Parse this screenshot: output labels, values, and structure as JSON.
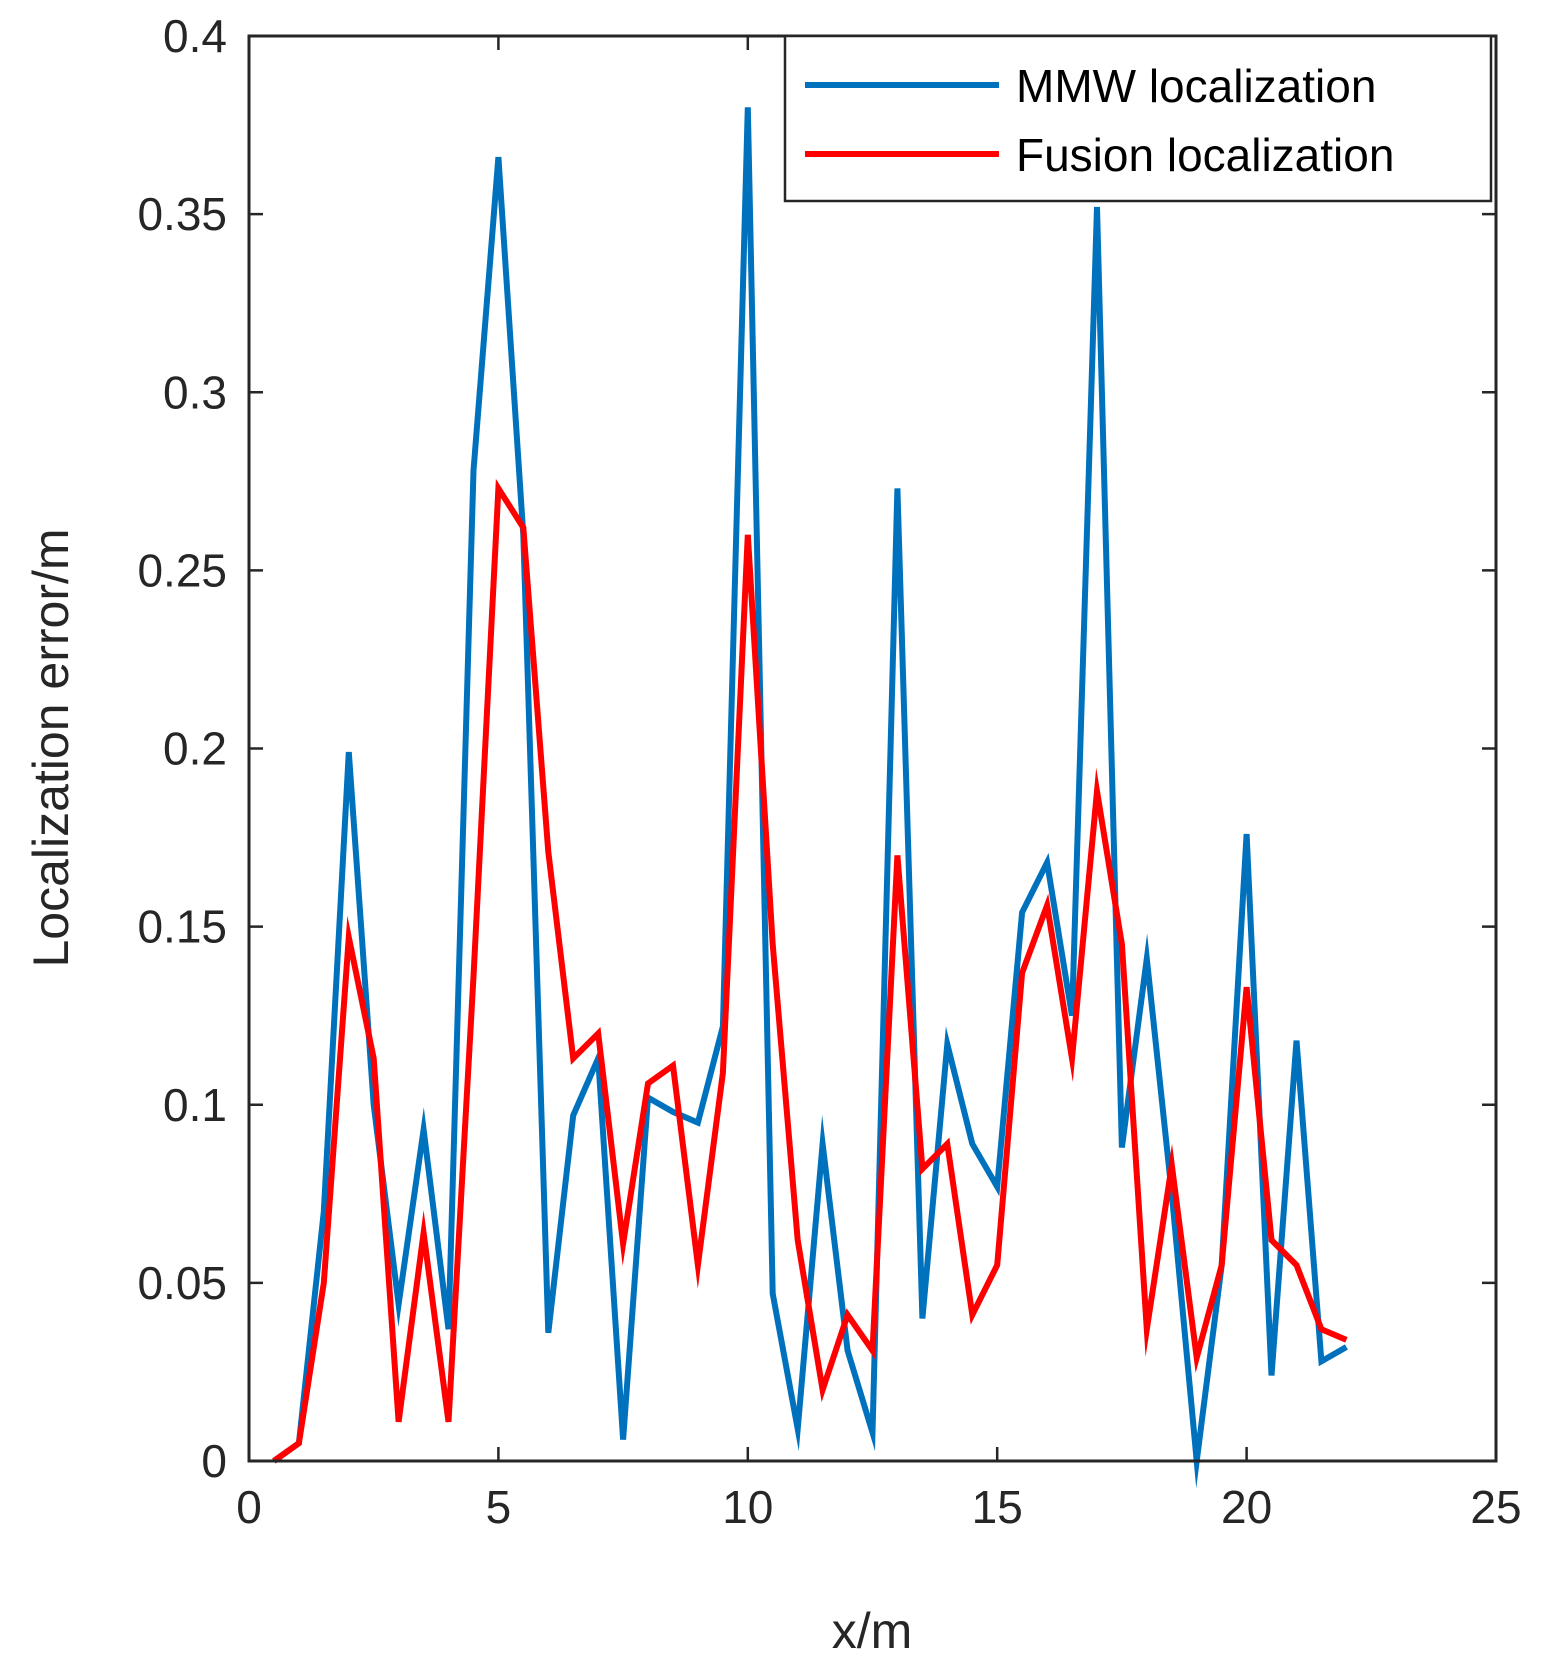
{
  "chart_data": {
    "type": "line",
    "title": "",
    "xlabel": "x/m",
    "ylabel": "Localization error/m",
    "xlim": [
      0,
      25
    ],
    "ylim": [
      0,
      0.4
    ],
    "xticks": [
      0,
      5,
      10,
      15,
      20,
      25
    ],
    "yticks": [
      0,
      0.05,
      0.1,
      0.15,
      0.2,
      0.25,
      0.3,
      0.35,
      0.4
    ],
    "xtick_labels": [
      "0",
      "5",
      "10",
      "15",
      "20",
      "25"
    ],
    "ytick_labels": [
      "0",
      "0.05",
      "0.1",
      "0.15",
      "0.2",
      "0.25",
      "0.3",
      "0.35",
      "0.4"
    ],
    "grid": false,
    "legend_position": "top-right",
    "x": [
      0.5,
      1,
      1.5,
      2,
      2.5,
      3,
      3.5,
      4,
      4.5,
      5,
      5.5,
      6,
      6.5,
      7,
      7.5,
      8,
      8.5,
      9,
      9.5,
      10,
      10.5,
      11,
      11.5,
      12,
      12.5,
      13,
      13.5,
      14,
      14.5,
      15,
      15.5,
      16,
      16.5,
      17,
      17.5,
      18,
      18.5,
      19,
      19.5,
      20,
      20.5,
      21,
      21.5,
      22
    ],
    "series": [
      {
        "name": "MMW localization",
        "color": "#0072BD",
        "values": [
          0.0,
          0.005,
          0.07,
          0.199,
          0.1,
          0.044,
          0.093,
          0.037,
          0.278,
          0.366,
          0.26,
          0.036,
          0.097,
          0.113,
          0.006,
          0.102,
          0.098,
          0.095,
          0.122,
          0.38,
          0.047,
          0.009,
          0.089,
          0.031,
          0.008,
          0.273,
          0.04,
          0.117,
          0.089,
          0.077,
          0.154,
          0.168,
          0.125,
          0.352,
          0.088,
          0.141,
          0.075,
          0.0,
          0.055,
          0.176,
          0.024,
          0.118,
          0.028,
          0.032
        ]
      },
      {
        "name": "Fusion localization",
        "color": "#FF0000",
        "values": [
          0.0,
          0.005,
          0.05,
          0.147,
          0.113,
          0.011,
          0.064,
          0.011,
          0.136,
          0.273,
          0.262,
          0.171,
          0.113,
          0.12,
          0.061,
          0.106,
          0.111,
          0.055,
          0.109,
          0.26,
          0.145,
          0.062,
          0.02,
          0.041,
          0.031,
          0.17,
          0.082,
          0.089,
          0.041,
          0.055,
          0.137,
          0.156,
          0.113,
          0.188,
          0.145,
          0.037,
          0.083,
          0.029,
          0.055,
          0.133,
          0.062,
          0.055,
          0.037,
          0.034
        ]
      }
    ]
  }
}
